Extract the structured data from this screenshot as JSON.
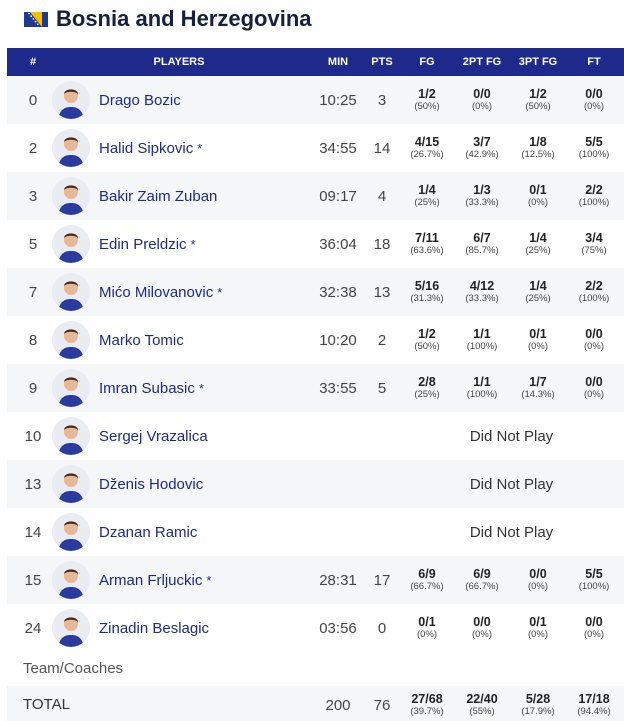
{
  "team": {
    "name": "Bosnia and Herzegovina",
    "flag_colors": {
      "field": "#1f3a93",
      "triangle": "#f2c200",
      "stars": "#ffffff"
    }
  },
  "columns": {
    "number": "#",
    "players": "PLAYERS",
    "min": "MIN",
    "pts": "PTS",
    "fg": "FG",
    "fg2": "2PT FG",
    "fg3": "3PT FG",
    "ft": "FT"
  },
  "players": [
    {
      "number": "0",
      "name": "Drago Bozic",
      "starter": "",
      "min": "10:25",
      "pts": "3",
      "fg": "1/2",
      "fg_pct": "(50%)",
      "fg2": "0/0",
      "fg2_pct": "(0%)",
      "fg3": "1/2",
      "fg3_pct": "(50%)",
      "ft": "0/0",
      "ft_pct": "(0%)",
      "dnp": ""
    },
    {
      "number": "2",
      "name": "Halid Sipkovic",
      "starter": "*",
      "min": "34:55",
      "pts": "14",
      "fg": "4/15",
      "fg_pct": "(26.7%)",
      "fg2": "3/7",
      "fg2_pct": "(42.9%)",
      "fg3": "1/8",
      "fg3_pct": "(12.5%)",
      "ft": "5/5",
      "ft_pct": "(100%)",
      "dnp": ""
    },
    {
      "number": "3",
      "name": "Bakir Zaim Zuban",
      "starter": "",
      "min": "09:17",
      "pts": "4",
      "fg": "1/4",
      "fg_pct": "(25%)",
      "fg2": "1/3",
      "fg2_pct": "(33.3%)",
      "fg3": "0/1",
      "fg3_pct": "(0%)",
      "ft": "2/2",
      "ft_pct": "(100%)",
      "dnp": ""
    },
    {
      "number": "5",
      "name": "Edin Preldzic",
      "starter": "*",
      "min": "36:04",
      "pts": "18",
      "fg": "7/11",
      "fg_pct": "(63.6%)",
      "fg2": "6/7",
      "fg2_pct": "(85.7%)",
      "fg3": "1/4",
      "fg3_pct": "(25%)",
      "ft": "3/4",
      "ft_pct": "(75%)",
      "dnp": ""
    },
    {
      "number": "7",
      "name": "Mićo Milovanovic",
      "starter": "*",
      "min": "32:38",
      "pts": "13",
      "fg": "5/16",
      "fg_pct": "(31.3%)",
      "fg2": "4/12",
      "fg2_pct": "(33.3%)",
      "fg3": "1/4",
      "fg3_pct": "(25%)",
      "ft": "2/2",
      "ft_pct": "(100%)",
      "dnp": ""
    },
    {
      "number": "8",
      "name": "Marko Tomic",
      "starter": "",
      "min": "10:20",
      "pts": "2",
      "fg": "1/2",
      "fg_pct": "(50%)",
      "fg2": "1/1",
      "fg2_pct": "(100%)",
      "fg3": "0/1",
      "fg3_pct": "(0%)",
      "ft": "0/0",
      "ft_pct": "(0%)",
      "dnp": ""
    },
    {
      "number": "9",
      "name": "Imran Subasic",
      "starter": "*",
      "min": "33:55",
      "pts": "5",
      "fg": "2/8",
      "fg_pct": "(25%)",
      "fg2": "1/1",
      "fg2_pct": "(100%)",
      "fg3": "1/7",
      "fg3_pct": "(14.3%)",
      "ft": "0/0",
      "ft_pct": "(0%)",
      "dnp": ""
    },
    {
      "number": "10",
      "name": "Sergej Vrazalica",
      "starter": "",
      "min": "",
      "pts": "",
      "fg": "",
      "fg_pct": "",
      "fg2": "",
      "fg2_pct": "",
      "fg3": "",
      "fg3_pct": "",
      "ft": "",
      "ft_pct": "",
      "dnp": "Did Not Play"
    },
    {
      "number": "13",
      "name": "Dženis Hodovic",
      "starter": "",
      "min": "",
      "pts": "",
      "fg": "",
      "fg_pct": "",
      "fg2": "",
      "fg2_pct": "",
      "fg3": "",
      "fg3_pct": "",
      "ft": "",
      "ft_pct": "",
      "dnp": "Did Not Play"
    },
    {
      "number": "14",
      "name": "Dzanan Ramic",
      "starter": "",
      "min": "",
      "pts": "",
      "fg": "",
      "fg_pct": "",
      "fg2": "",
      "fg2_pct": "",
      "fg3": "",
      "fg3_pct": "",
      "ft": "",
      "ft_pct": "",
      "dnp": "Did Not Play"
    },
    {
      "number": "15",
      "name": "Arman Frljuckic",
      "starter": "*",
      "min": "28:31",
      "pts": "17",
      "fg": "6/9",
      "fg_pct": "(66.7%)",
      "fg2": "6/9",
      "fg2_pct": "(66.7%)",
      "fg3": "0/0",
      "fg3_pct": "(0%)",
      "ft": "5/5",
      "ft_pct": "(100%)",
      "dnp": ""
    },
    {
      "number": "24",
      "name": "Zinadin Beslagic",
      "starter": "",
      "min": "03:56",
      "pts": "0",
      "fg": "0/1",
      "fg_pct": "(0%)",
      "fg2": "0/0",
      "fg2_pct": "(0%)",
      "fg3": "0/1",
      "fg3_pct": "(0%)",
      "ft": "0/0",
      "ft_pct": "(0%)",
      "dnp": ""
    }
  ],
  "team_coaches_label": "Team/Coaches",
  "total": {
    "label": "TOTAL",
    "min": "200",
    "pts": "76",
    "fg": "27/68",
    "fg_pct": "(39.7%)",
    "fg2": "22/40",
    "fg2_pct": "(55%)",
    "fg3": "5/28",
    "fg3_pct": "(17.9%)",
    "ft": "17/18",
    "ft_pct": "(94.4%)"
  }
}
